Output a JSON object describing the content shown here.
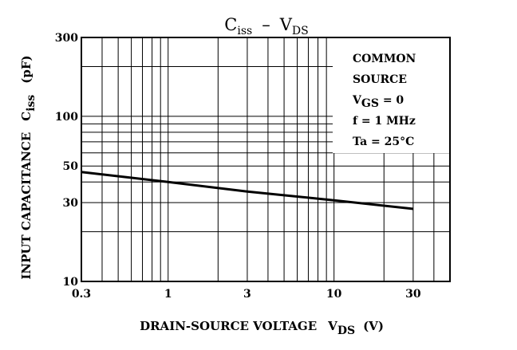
{
  "chart_data": {
    "type": "line",
    "title": {
      "part1_main": "C",
      "part1_sub": "iss",
      "dash": "–",
      "part2_main": "V",
      "part2_sub": "DS"
    },
    "xlabel": {
      "main": "DRAIN-SOURCE VOLTAGE",
      "sym_main": "V",
      "sym_sub": "DS",
      "unit": "(V)"
    },
    "ylabel": {
      "main": "INPUT CAPACITANCE",
      "sym_main": "C",
      "sym_sub": "iss",
      "unit": "(pF)"
    },
    "xscale": "log",
    "yscale": "log",
    "xlim": [
      0.3,
      50
    ],
    "ylim": [
      10,
      300
    ],
    "x_ticks": [
      0.3,
      1,
      3,
      10,
      30
    ],
    "x_tick_labels": [
      "0.3",
      "1",
      "3",
      "10",
      "30"
    ],
    "y_ticks": [
      10,
      30,
      50,
      100,
      300
    ],
    "y_tick_labels": [
      "10",
      "30",
      "50",
      "100",
      "300"
    ],
    "grid": true,
    "series": [
      {
        "x": [
          0.3,
          1,
          3,
          10,
          30
        ],
        "y": [
          46,
          40,
          35,
          31,
          27.5
        ]
      }
    ],
    "annotation": {
      "lines": [
        {
          "text": "COMMON"
        },
        {
          "text": "SOURCE"
        },
        {
          "main": "V",
          "sub": "GS",
          "rest": " = 0"
        },
        {
          "text": "f = 1 MHz"
        },
        {
          "text": "Ta = 25°C"
        }
      ],
      "placement": "top-right"
    },
    "line_color": "#000000"
  }
}
